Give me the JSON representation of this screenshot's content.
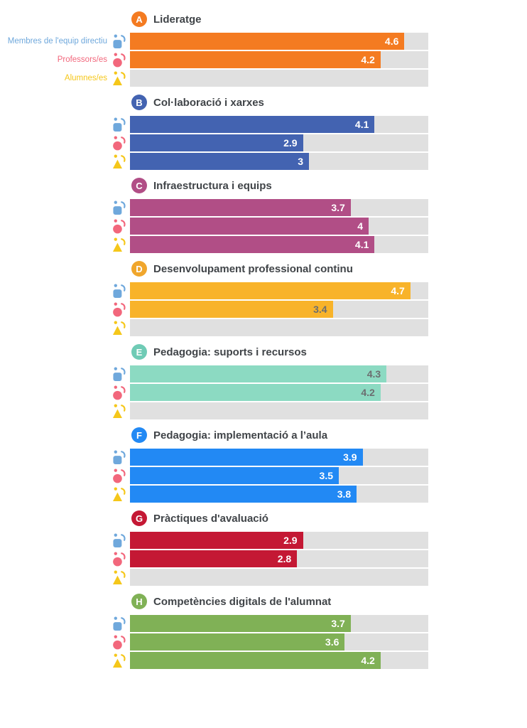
{
  "page": {
    "background": "#ffffff",
    "title_color": "#404448"
  },
  "legend": {
    "groups": [
      {
        "id": "leaders",
        "label": "Membres de l'equip directiu",
        "color": "#6FA8DC",
        "icon": "leader-icon"
      },
      {
        "id": "teachers",
        "label": "Professors/es",
        "color": "#F2677C",
        "icon": "teacher-icon"
      },
      {
        "id": "students",
        "label": "Alumnes/es",
        "color": "#F5C71A",
        "icon": "student-icon"
      }
    ]
  },
  "chart_data": {
    "type": "bar",
    "orientation": "horizontal",
    "value_range": [
      0,
      5
    ],
    "track_color": "#E0E0E0",
    "grid": false,
    "legend_position": "left-of-first-section",
    "categories": [
      "Membres de l'equip directiu",
      "Professors/es",
      "Alumnes/es"
    ],
    "sections": [
      {
        "letter": "A",
        "title": "Lideratge",
        "color": "#F47B21",
        "badge_color": "#F47B21",
        "values": [
          4.6,
          4.2,
          null
        ],
        "value_labels": [
          "4.6",
          "4.2",
          ""
        ],
        "value_colors": [
          "#ffffff",
          "#ffffff",
          ""
        ]
      },
      {
        "letter": "B",
        "title": "Col·laboració i xarxes",
        "color": "#4363B1",
        "badge_color": "#4363B1",
        "values": [
          4.1,
          2.9,
          3
        ],
        "value_labels": [
          "4.1",
          "2.9",
          "3"
        ],
        "value_colors": [
          "#ffffff",
          "#ffffff",
          "#ffffff"
        ]
      },
      {
        "letter": "C",
        "title": "Infraestructura i equips",
        "color": "#B14E86",
        "badge_color": "#B14E86",
        "values": [
          3.7,
          4,
          4.1
        ],
        "value_labels": [
          "3.7",
          "4",
          "4.1"
        ],
        "value_colors": [
          "#ffffff",
          "#ffffff",
          "#ffffff"
        ]
      },
      {
        "letter": "D",
        "title": "Desenvolupament professional continu",
        "color": "#F8B32A",
        "badge_color": "#F0A62C",
        "values": [
          4.7,
          3.4,
          null
        ],
        "value_labels": [
          "4.7",
          "3.4",
          ""
        ],
        "value_colors": [
          "#ffffff",
          "#6B6E70",
          ""
        ]
      },
      {
        "letter": "E",
        "title": "Pedagogia: suports i recursos",
        "color": "#8CDAC2",
        "badge_color": "#6FCBB5",
        "values": [
          4.3,
          4.2,
          null
        ],
        "value_labels": [
          "4.3",
          "4.2",
          ""
        ],
        "value_colors": [
          "#6B6E70",
          "#6B6E70",
          ""
        ]
      },
      {
        "letter": "F",
        "title": "Pedagogia: implementació a l’aula",
        "color": "#2289F4",
        "badge_color": "#2289F4",
        "values": [
          3.9,
          3.5,
          3.8
        ],
        "value_labels": [
          "3.9",
          "3.5",
          "3.8"
        ],
        "value_colors": [
          "#ffffff",
          "#ffffff",
          "#ffffff"
        ]
      },
      {
        "letter": "G",
        "title": "Pràctiques d'avaluació",
        "color": "#C41834",
        "badge_color": "#C41834",
        "values": [
          2.9,
          2.8,
          null
        ],
        "value_labels": [
          "2.9",
          "2.8",
          ""
        ],
        "value_colors": [
          "#ffffff",
          "#ffffff",
          ""
        ]
      },
      {
        "letter": "H",
        "title": "Competències digitals de l'alumnat",
        "color": "#80B156",
        "badge_color": "#80B156",
        "values": [
          3.7,
          3.6,
          4.2
        ],
        "value_labels": [
          "3.7",
          "3.6",
          "4.2"
        ],
        "value_colors": [
          "#ffffff",
          "#ffffff",
          "#ffffff"
        ]
      }
    ]
  }
}
